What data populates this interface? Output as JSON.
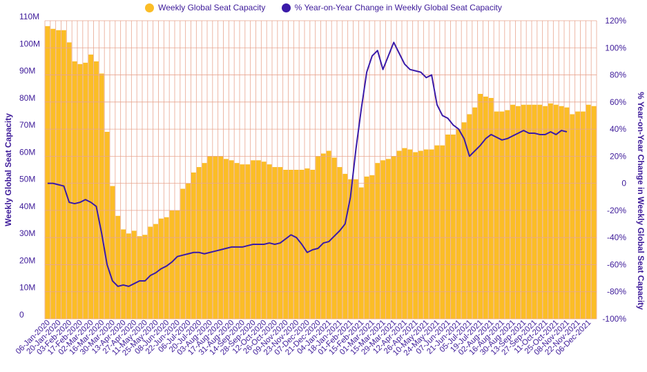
{
  "legend": {
    "bar_label": "Weekly Global Seat Capacity",
    "line_label": "% Year-on-Year Change in Weekly Global Seat Capacity"
  },
  "colors": {
    "bar": "#fbbd26",
    "line": "#3a1aa8",
    "grid": "#e8a58f",
    "text": "#3d1a99"
  },
  "chart_data": {
    "type": "bar",
    "title": "",
    "ylabel": "Weekly Global Seat Capacity",
    "y2label": "% Year-on-Year Change in Weekly Global Seat Capacity",
    "ylim": [
      0,
      110
    ],
    "y2lim": [
      -100,
      120
    ],
    "yticks": [
      "0",
      "10M",
      "20M",
      "30M",
      "40M",
      "50M",
      "60M",
      "70M",
      "80M",
      "90M",
      "100M",
      "110M"
    ],
    "y2ticks": [
      "-100%",
      "-80%",
      "-60%",
      "-40%",
      "-20%",
      "0",
      "20%",
      "40%",
      "60%",
      "80%",
      "100%",
      "120%"
    ],
    "x_labels": [
      "06-Jan-2020",
      "20-Jan-2020",
      "03-Feb-2020",
      "17-Feb-2020",
      "02-Mar-2020",
      "16-Mar-2020",
      "30-Mar-2020",
      "13-Apr-2020",
      "27-Apr-2020",
      "11-May-2020",
      "25-May-2020",
      "08-Jun-2020",
      "22-Jun-2020",
      "06-Jul-2020",
      "20-Jul-2020",
      "03-Aug-2020",
      "17-Aug-2020",
      "31-Aug-2020",
      "14-Sep-2020",
      "28-Sep-2020",
      "12-Oct-2020",
      "26-Oct-2020",
      "09-Nov-2020",
      "23-Nov-2020",
      "07-Dec-2020",
      "21-Dec-2020",
      "04-Jan-2021",
      "18-Jan-2021",
      "01-Feb-2021",
      "15-Feb-2021",
      "01-Mar-2021",
      "15-Mar-2021",
      "29-Mar-2021",
      "12-Apr-2021",
      "26-Apr-2021",
      "10-May-2021",
      "24-May-2021",
      "07-Jun-2021",
      "21-Jun-2021",
      "05-Jul-2021",
      "19-Jul-2021",
      "02-Aug-2021",
      "16-Aug-2021",
      "30-Aug-2021",
      "13-Sep-2021",
      "27-Sep-2021",
      "11-Oct-2021",
      "25-Oct-2021",
      "08-Nov-2021",
      "22-Nov-2021",
      "06-Dec-2021"
    ],
    "series": [
      {
        "name": "Weekly Global Seat Capacity",
        "kind": "bar",
        "axis": "left",
        "values": [
          108,
          107,
          106.5,
          106.5,
          102,
          95,
          94,
          94.5,
          97.5,
          95,
          90.5,
          69,
          49,
          38,
          33,
          31.5,
          32.5,
          30.5,
          31,
          34,
          35,
          37,
          37.5,
          40,
          40,
          48,
          50,
          54,
          56,
          57.5,
          60,
          60,
          60,
          59,
          58.5,
          57.5,
          57,
          57,
          58.5,
          58.5,
          58,
          57,
          56,
          56,
          55,
          55,
          55,
          55,
          55.5,
          55,
          60,
          61,
          62,
          59.5,
          56,
          53.5,
          51.5,
          51.5,
          48.5,
          52.5,
          53,
          57.5,
          58.5,
          59,
          60,
          62,
          63,
          62.5,
          61.5,
          62,
          62.5,
          62.5,
          64,
          64,
          68,
          68,
          70,
          72.5,
          75.5,
          78,
          83,
          82,
          81.5,
          76.5,
          76.5,
          77,
          79,
          78.5,
          79,
          79,
          79,
          79,
          78.5,
          79.5,
          79,
          78.5,
          78,
          75.5,
          76.5,
          76.5,
          79,
          78.5
        ]
      },
      {
        "name": "% Year-on-Year Change in Weekly Global Seat Capacity",
        "kind": "line",
        "axis": "right",
        "values": [
          0,
          0,
          -1,
          -2,
          -14,
          -15,
          -14,
          -12,
          -14,
          -17,
          -37,
          -60,
          -72,
          -76,
          -75,
          -76,
          -74,
          -72,
          -72,
          -68,
          -66,
          -63,
          -61,
          -58,
          -54,
          -53,
          -52,
          -51,
          -51,
          -52,
          -51,
          -50,
          -49,
          -48,
          -47,
          -47,
          -47,
          -46,
          -45,
          -45,
          -45,
          -44,
          -45,
          -44,
          -41,
          -38,
          -40,
          -45,
          -51,
          -49,
          -48,
          -44,
          -43,
          -39,
          -35,
          -30,
          -10,
          25,
          55,
          82,
          94,
          98,
          84,
          94,
          104,
          96,
          88,
          84,
          83,
          82,
          78,
          80,
          58,
          50,
          48,
          43,
          40,
          33,
          20,
          24,
          28,
          33,
          36,
          34,
          32,
          33,
          35,
          37,
          39,
          37,
          37,
          36,
          36,
          38,
          36,
          39,
          38
        ]
      }
    ],
    "grid": true,
    "legend_position": "top"
  }
}
